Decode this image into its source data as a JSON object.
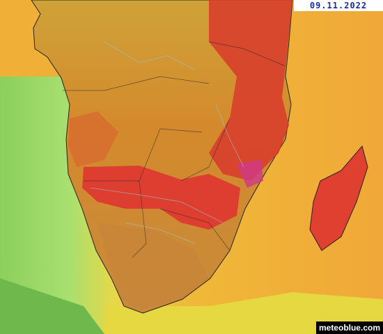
{
  "date": "09.11.2022",
  "credit": "meteoblue.com"
}
